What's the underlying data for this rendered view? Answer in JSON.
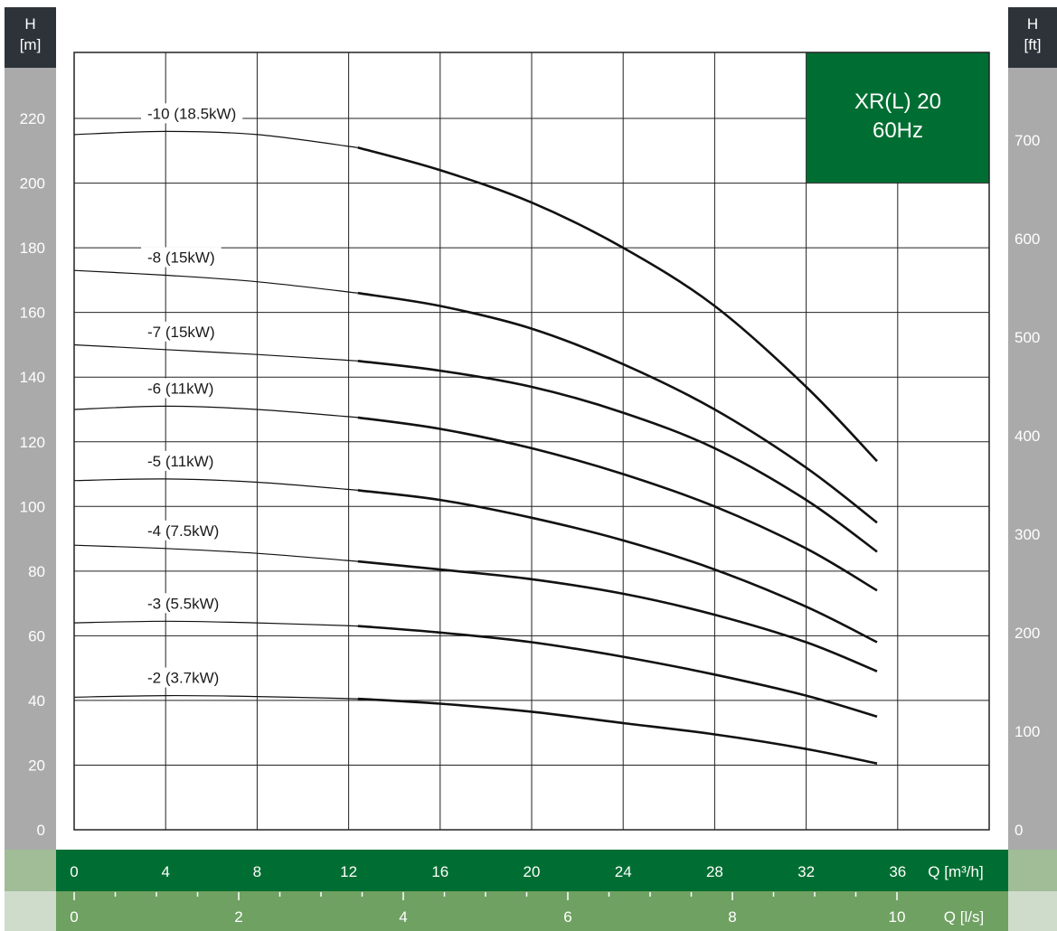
{
  "chart_data": {
    "type": "line",
    "title": "XR(L) 20",
    "subtitle": "60Hz",
    "xlabel": "Q [m³/h]",
    "x2label": "Q [l/s]",
    "ylabel_header": "H",
    "ylabel_unit": "[m]",
    "y2label_header": "H",
    "y2label_unit": "[ft]",
    "xlim": [
      0,
      40
    ],
    "ylim": [
      0,
      230
    ],
    "x_ticks": [
      0,
      4,
      8,
      12,
      16,
      20,
      24,
      28,
      32,
      36
    ],
    "x2_ticks": [
      0,
      2,
      4,
      6,
      8,
      10
    ],
    "y_ticks": [
      0,
      20,
      40,
      60,
      80,
      100,
      120,
      140,
      160,
      180,
      200,
      220
    ],
    "y2_ticks": [
      0,
      100,
      200,
      300,
      400,
      500,
      600,
      700
    ],
    "grid": true,
    "series": [
      {
        "name": "-10 (18.5kW)",
        "x": [
          0,
          4,
          8,
          12.4,
          16,
          20,
          24,
          28,
          32,
          35.1
        ],
        "y": [
          215,
          216,
          215,
          211,
          204,
          194,
          180,
          162,
          137,
          114
        ]
      },
      {
        "name": "-8 (15kW)",
        "x": [
          0,
          4,
          8,
          12.4,
          16,
          20,
          24,
          28,
          32,
          35.1
        ],
        "y": [
          173,
          171.5,
          169.5,
          166,
          162,
          155,
          144,
          130,
          112,
          95
        ]
      },
      {
        "name": "-7 (15kW)",
        "x": [
          0,
          4,
          8,
          12.4,
          16,
          20,
          24,
          28,
          32,
          35.1
        ],
        "y": [
          150,
          148.5,
          147,
          145,
          142,
          137,
          129,
          118,
          102,
          86
        ]
      },
      {
        "name": "-6 (11kW)",
        "x": [
          0,
          4,
          8,
          12.4,
          16,
          20,
          24,
          28,
          32,
          35.1
        ],
        "y": [
          130,
          131,
          130,
          127.5,
          124,
          118,
          110,
          100,
          87,
          74
        ]
      },
      {
        "name": "-5 (11kW)",
        "x": [
          0,
          4,
          8,
          12.4,
          16,
          20,
          24,
          28,
          32,
          35.1
        ],
        "y": [
          108,
          108.5,
          107.5,
          105,
          102,
          96.5,
          89.5,
          80.5,
          69,
          58
        ]
      },
      {
        "name": "-4 (7.5kW)",
        "x": [
          0,
          4,
          8,
          12.4,
          16,
          20,
          24,
          28,
          32,
          35.1
        ],
        "y": [
          88,
          87,
          85.5,
          83,
          80.5,
          77.5,
          73,
          66.5,
          58,
          49
        ]
      },
      {
        "name": "-3 (5.5kW)",
        "x": [
          0,
          4,
          8,
          12.4,
          16,
          20,
          24,
          28,
          32,
          35.1
        ],
        "y": [
          64,
          64.5,
          64,
          63,
          61,
          58,
          53.5,
          48,
          41.5,
          35
        ]
      },
      {
        "name": "-2 (3.7kW)",
        "x": [
          0,
          4,
          8,
          12.4,
          16,
          20,
          24,
          28,
          32,
          35.1
        ],
        "y": [
          41,
          41.5,
          41.2,
          40.5,
          39,
          36.5,
          33,
          29.5,
          25,
          20.5
        ]
      }
    ]
  },
  "colors": {
    "header_dark": "#2d3339",
    "axis_gray": "#a9aaa9",
    "band_green": "#006e32",
    "band_light": "#a0bd98",
    "band2_green": "#6fa162",
    "band2_light": "#cfdccb",
    "curve": "#111111",
    "grid": "#222222"
  }
}
